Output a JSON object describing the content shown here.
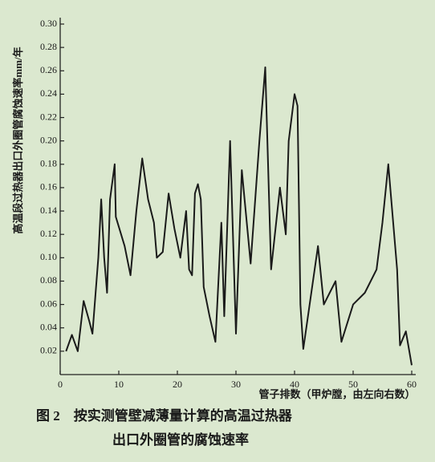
{
  "chart_data": {
    "type": "line",
    "y_label": "高温段过热器出口外圈管腐蚀速率mm/年",
    "x_label": "管子排数（甲炉膛，由左向右数）",
    "caption": [
      "图 2　按实测管壁减薄量计算的高温过热器",
      "出口外圈管的腐蚀速率"
    ],
    "x": [
      1,
      2,
      3,
      4,
      5,
      5.5,
      6.5,
      7,
      7.5,
      8,
      8.5,
      9.3,
      9.5,
      11,
      12,
      13,
      14,
      15,
      16,
      16.5,
      17.5,
      18.5,
      19.5,
      20.5,
      21.5,
      22,
      22.5,
      23,
      23.5,
      24,
      24.5,
      25.5,
      26.5,
      27.5,
      28,
      29,
      30,
      31,
      32.5,
      34,
      35,
      36,
      37.5,
      38.5,
      39,
      40,
      40.5,
      41,
      41.5,
      44,
      45,
      47,
      48,
      50,
      52,
      54,
      55,
      56,
      57.5,
      58,
      59,
      60
    ],
    "series": [
      {
        "color": "#1a1a1a",
        "values": [
          0.02,
          0.034,
          0.02,
          0.063,
          0.045,
          0.035,
          0.1,
          0.15,
          0.1,
          0.07,
          0.15,
          0.18,
          0.135,
          0.11,
          0.085,
          0.14,
          0.185,
          0.15,
          0.13,
          0.1,
          0.105,
          0.155,
          0.125,
          0.1,
          0.14,
          0.09,
          0.085,
          0.155,
          0.163,
          0.15,
          0.075,
          0.05,
          0.028,
          0.13,
          0.05,
          0.2,
          0.035,
          0.175,
          0.095,
          0.2,
          0.263,
          0.09,
          0.16,
          0.12,
          0.2,
          0.24,
          0.23,
          0.06,
          0.022,
          0.11,
          0.06,
          0.08,
          0.028,
          0.06,
          0.07,
          0.09,
          0.13,
          0.18,
          0.09,
          0.025,
          0.037,
          0.008
        ]
      }
    ],
    "xlim": [
      0,
      60
    ],
    "xticks": [
      0,
      10,
      20,
      30,
      40,
      50,
      60
    ],
    "ylim": [
      0,
      0.3
    ],
    "yticks": [
      0.02,
      0.04,
      0.06,
      0.08,
      {
        "value": 0.1,
        "label": "0.10"
      },
      0.12,
      0.14,
      0.16,
      0.18,
      {
        "value": 0.2,
        "label": "0.20"
      },
      0.22,
      0.24,
      0.26,
      0.28,
      {
        "value": 0.3,
        "label": "0.30"
      }
    ]
  }
}
